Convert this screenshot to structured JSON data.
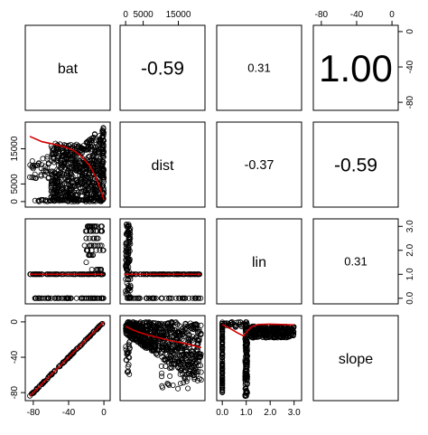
{
  "chart_data": {
    "type": "scatter",
    "variables": [
      "bat",
      "dist",
      "lin",
      "slope"
    ],
    "upper_panels": [
      {
        "row": 0,
        "col": 1,
        "value": "-0.59"
      },
      {
        "row": 0,
        "col": 2,
        "value": "0.31"
      },
      {
        "row": 0,
        "col": 3,
        "value": "1.00"
      },
      {
        "row": 1,
        "col": 2,
        "value": "-0.37"
      },
      {
        "row": 1,
        "col": 3,
        "value": "-0.59"
      },
      {
        "row": 2,
        "col": 3,
        "value": "0.31"
      }
    ],
    "axes": {
      "bat": {
        "ticks": [
          "-80",
          "-40",
          "0"
        ],
        "tick_values": [
          -80,
          -40,
          0
        ],
        "range": [
          -86,
          4
        ]
      },
      "dist": {
        "ticks": [
          "0",
          "5000",
          "15000"
        ],
        "tick_values": [
          0,
          5000,
          15000
        ],
        "range": [
          -800,
          21800
        ]
      },
      "lin": {
        "ticks": [
          "0.0",
          "1.0",
          "2.0",
          "3.0"
        ],
        "tick_values": [
          0,
          1,
          2,
          3
        ],
        "range": [
          -0.12,
          3.2
        ]
      },
      "slope": {
        "ticks": [
          "-80",
          "-40",
          "0"
        ],
        "tick_values": [
          -80,
          -40,
          0
        ],
        "range": [
          -86,
          4
        ]
      }
    },
    "outer_axes": {
      "top": [
        "dist",
        "slope"
      ],
      "bottom": [
        "bat",
        "lin"
      ],
      "left": [
        "dist",
        "slope"
      ],
      "right": [
        "bat",
        "lin"
      ]
    },
    "point_color": "#000000",
    "smooth_color": "#d00000",
    "smooths": {
      "dist_vs_bat": {
        "x": [
          -84,
          -70,
          -55,
          -45,
          -35,
          -25,
          -15,
          -8,
          -3,
          0
        ],
        "y": [
          18500,
          17000,
          16200,
          15600,
          14600,
          12800,
          9800,
          6200,
          2800,
          400
        ]
      },
      "lin_vs_bat": {
        "x": [
          -84,
          0
        ],
        "y": [
          1.0,
          1.0
        ]
      },
      "lin_vs_dist": {
        "x": [
          -400,
          21500
        ],
        "y": [
          1.0,
          1.0
        ]
      },
      "slope_vs_bat": {
        "x": [
          -84,
          0
        ],
        "y": [
          -84,
          0
        ]
      },
      "slope_vs_dist": {
        "x": [
          0,
          2000,
          4000,
          6000,
          8000,
          10000,
          12000,
          15000,
          18000,
          21500
        ],
        "y": [
          -5,
          -9,
          -12,
          -14.5,
          -16.5,
          -18.5,
          -20.5,
          -23,
          -25.5,
          -29
        ]
      },
      "slope_vs_lin": {
        "x": [
          0.0,
          0.3,
          0.6,
          0.9,
          1.0,
          1.2,
          1.5,
          2.0,
          2.5,
          3.0
        ],
        "y": [
          -3,
          -7,
          -12,
          -16,
          -12,
          -6,
          -3,
          -2.5,
          -3,
          -3.5
        ]
      }
    }
  }
}
